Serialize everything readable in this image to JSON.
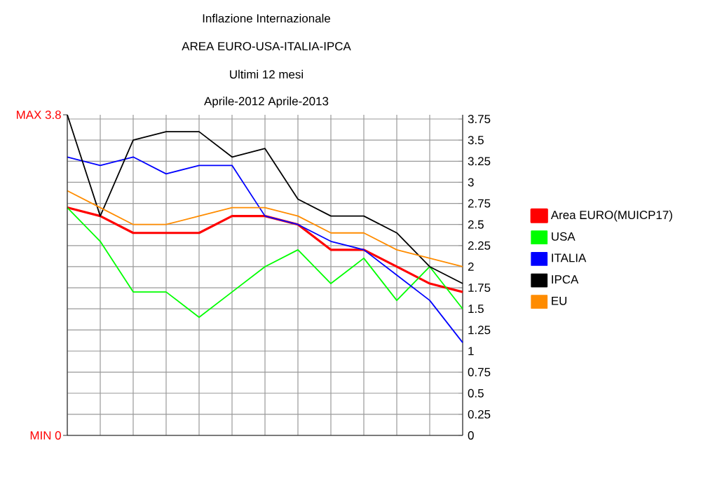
{
  "chart_data": {
    "type": "line",
    "title": "Inflazione Internazionale",
    "subtitle": "AREA EURO-USA-ITALIA-IPCA",
    "annotations": [
      "Ultimi 12 mesi",
      "Aprile-2012 Aprile-2013",
      "MAX 3.8",
      "MIN 0"
    ],
    "categories": [
      null,
      null,
      null,
      null,
      null,
      null,
      null,
      null,
      null,
      null,
      null,
      null,
      null
    ],
    "series": [
      {
        "name": "Area EURO(MUICP17)",
        "color": "#ff0000",
        "values": [
          2.7,
          2.6,
          2.4,
          2.4,
          2.4,
          2.6,
          2.6,
          2.5,
          2.2,
          2.2,
          2.0,
          1.8,
          1.7
        ]
      },
      {
        "name": "USA",
        "color": "#00ff00",
        "values": [
          2.7,
          2.3,
          1.7,
          1.7,
          1.4,
          1.7,
          2.0,
          2.2,
          1.8,
          2.1,
          1.6,
          2.0,
          1.5
        ]
      },
      {
        "name": "ITALIA",
        "color": "#0000ff",
        "values": [
          3.3,
          3.2,
          3.3,
          3.1,
          3.2,
          3.2,
          2.6,
          2.5,
          2.3,
          2.2,
          1.9,
          1.6,
          1.1
        ]
      },
      {
        "name": "IPCA",
        "color": "#000000",
        "values": [
          3.8,
          2.6,
          3.5,
          3.6,
          3.6,
          3.3,
          3.4,
          2.8,
          2.6,
          2.6,
          2.4,
          2.0,
          1.8
        ]
      },
      {
        "name": "EU",
        "color": "#ff8c00",
        "values": [
          2.9,
          2.7,
          2.5,
          2.5,
          2.6,
          2.7,
          2.7,
          2.6,
          2.4,
          2.4,
          2.2,
          2.1,
          2.0
        ]
      }
    ],
    "ylim": [
      0,
      3.8
    ],
    "yticks": [
      0,
      0.25,
      0.5,
      0.75,
      1,
      1.25,
      1.5,
      1.75,
      2,
      2.25,
      2.5,
      2.75,
      3,
      3.25,
      3.5,
      3.75
    ],
    "grid": true,
    "legend": "right"
  }
}
